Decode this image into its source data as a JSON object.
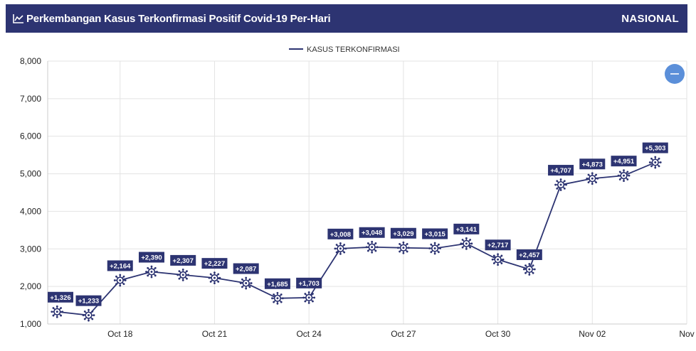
{
  "header": {
    "title": "Perkembangan Kasus Terkonfirmasi Positif Covid-19 Per-Hari",
    "region": "NASIONAL",
    "icon": "line-chart-icon"
  },
  "zoom_button": {
    "icon": "minus-icon",
    "color": "#5b8fd9"
  },
  "colors": {
    "header_bg": "#2d3472",
    "series": "#2d3472"
  },
  "chart_data": {
    "type": "line",
    "title": "",
    "xlabel": "",
    "ylabel": "",
    "ylim": [
      1000,
      8000
    ],
    "grid": true,
    "legend": "top-center",
    "yticks": [
      "1,000",
      "2,000",
      "3,000",
      "4,000",
      "5,000",
      "6,000",
      "7,000",
      "8,000"
    ],
    "xticks": [
      {
        "label": "Oct 18",
        "day": 18
      },
      {
        "label": "Oct 21",
        "day": 21
      },
      {
        "label": "Oct 24",
        "day": 24
      },
      {
        "label": "Oct 27",
        "day": 27
      },
      {
        "label": "Oct 30",
        "day": 30
      },
      {
        "label": "Nov 02",
        "day": 33
      },
      {
        "label": "Nov",
        "day": 36
      }
    ],
    "series": [
      {
        "name": "KASUS TERKONFIRMASI",
        "color": "#2d3472",
        "dates": [
          "Oct 16",
          "Oct 17",
          "Oct 18",
          "Oct 19",
          "Oct 20",
          "Oct 21",
          "Oct 22",
          "Oct 23",
          "Oct 24",
          "Oct 25",
          "Oct 26",
          "Oct 27",
          "Oct 28",
          "Oct 29",
          "Oct 30",
          "Oct 31",
          "Nov 01",
          "Nov 02",
          "Nov 03",
          "Nov 04"
        ],
        "days": [
          16,
          17,
          18,
          19,
          20,
          21,
          22,
          23,
          24,
          25,
          26,
          27,
          28,
          29,
          30,
          31,
          32,
          33,
          34,
          35
        ],
        "values": [
          1326,
          1233,
          2164,
          2390,
          2307,
          2227,
          2087,
          1685,
          1703,
          3008,
          3048,
          3029,
          3015,
          3141,
          2717,
          2457,
          4707,
          4873,
          4951,
          5303
        ],
        "labels": [
          "+1,326",
          "+1,233",
          "+2,164",
          "+2,390",
          "+2,307",
          "+2,227",
          "+2,087",
          "+1,685",
          "+1,703",
          "+3,008",
          "+3,048",
          "+3,029",
          "+3,015",
          "+3,141",
          "+2,717",
          "+2,457",
          "+4,707",
          "+4,873",
          "+4,951",
          "+5,303"
        ]
      }
    ]
  }
}
